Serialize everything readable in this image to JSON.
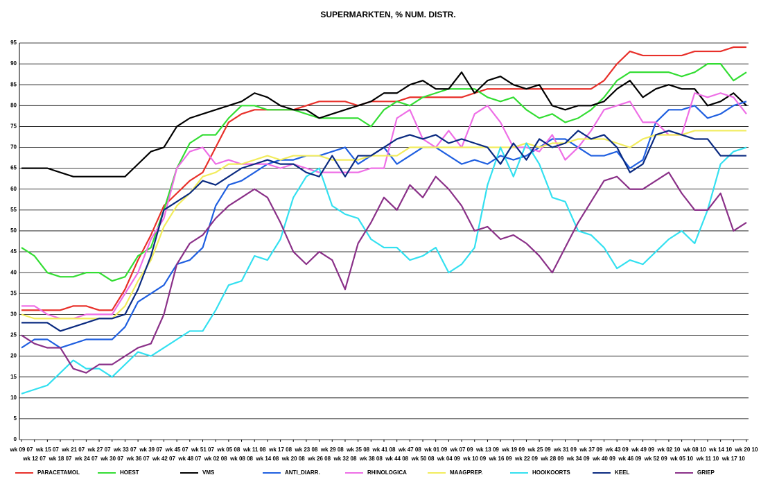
{
  "chart_data": {
    "type": "line",
    "title": "SUPERMARKTEN, % NUM. DISTR.",
    "categories": [
      "wk 09 07",
      "wk 12 07",
      "wk 15 07",
      "wk 18 07",
      "wk 21 07",
      "wk 24 07",
      "wk 27 07",
      "wk 30 07",
      "wk 33 07",
      "wk 36 07",
      "wk 39 07",
      "wk 42 07",
      "wk 45 07",
      "wk 48 07",
      "wk 51 07",
      "wk 02 08",
      "wk 05 08",
      "wk 08 08",
      "wk 11 08",
      "wk 14 08",
      "wk 17 08",
      "wk 20 08",
      "wk 23 08",
      "wk 26 08",
      "wk 29 08",
      "wk 32 08",
      "wk 35 08",
      "wk 38 08",
      "wk 41 08",
      "wk 44 08",
      "wk 47 08",
      "wk 50 08",
      "wk 01 09",
      "wk 04 09",
      "wk 07 09",
      "wk 10 09",
      "wk 13 09",
      "wk 16 09",
      "wk 19 09",
      "wk 22 09",
      "wk 25 09",
      "wk 28 09",
      "wk 31 09",
      "wk 34 09",
      "wk 37 09",
      "wk 40 09",
      "wk 43 09",
      "wk 46 09",
      "wk 49 09",
      "wk 52 09",
      "wk 02 10",
      "wk 05 10",
      "wk 08 10",
      "wk 11 10",
      "wk 14 10",
      "wk 17 10",
      "wk 20 10"
    ],
    "series": [
      {
        "name": "PARACETAMOL",
        "color": "#e8302a",
        "values": [
          31,
          31,
          31,
          31,
          32,
          32,
          31,
          31,
          36,
          43,
          49,
          56,
          59,
          62,
          64,
          70,
          76,
          78,
          79,
          79,
          79,
          79,
          80,
          81,
          81,
          81,
          80,
          81,
          81,
          81,
          82,
          82,
          82,
          82,
          82,
          83,
          84,
          84,
          84,
          84,
          84,
          84,
          84,
          84,
          84,
          86,
          90,
          93,
          92,
          92,
          92,
          92,
          93,
          93,
          93,
          94,
          94
        ]
      },
      {
        "name": "HOEST",
        "color": "#33dd33",
        "values": [
          46,
          44,
          40,
          39,
          39,
          40,
          40,
          38,
          39,
          44,
          46,
          55,
          65,
          71,
          73,
          73,
          77,
          80,
          80,
          79,
          79,
          79,
          78,
          77,
          77,
          77,
          77,
          75,
          79,
          81,
          80,
          82,
          83,
          84,
          84,
          84,
          82,
          81,
          82,
          79,
          77,
          78,
          76,
          77,
          79,
          82,
          86,
          88,
          88,
          88,
          88,
          87,
          88,
          90,
          90,
          86,
          88
        ]
      },
      {
        "name": "VMS",
        "color": "#000000",
        "values": [
          65,
          65,
          65,
          64,
          63,
          63,
          63,
          63,
          63,
          66,
          69,
          70,
          75,
          77,
          78,
          79,
          80,
          81,
          83,
          82,
          80,
          79,
          79,
          77,
          78,
          79,
          80,
          81,
          83,
          83,
          85,
          86,
          84,
          84,
          88,
          83,
          86,
          87,
          85,
          84,
          85,
          80,
          79,
          80,
          80,
          81,
          84,
          86,
          82,
          84,
          85,
          84,
          84,
          80,
          81,
          83,
          80
        ]
      },
      {
        "name": "ANTI_DIARR.",
        "color": "#1f5fe0",
        "values": [
          22,
          24,
          24,
          22,
          23,
          24,
          24,
          24,
          27,
          33,
          35,
          37,
          42,
          43,
          46,
          56,
          61,
          62,
          64,
          66,
          67,
          67,
          68,
          68,
          69,
          70,
          66,
          68,
          70,
          66,
          68,
          70,
          70,
          68,
          66,
          67,
          66,
          68,
          67,
          68,
          70,
          72,
          72,
          70,
          68,
          68,
          69,
          65,
          67,
          76,
          79,
          79,
          80,
          77,
          78,
          80,
          81
        ]
      },
      {
        "name": "RHINOLOGICA",
        "color": "#ee6ee6",
        "values": [
          32,
          32,
          30,
          29,
          29,
          30,
          30,
          30,
          35,
          40,
          48,
          53,
          65,
          69,
          70,
          66,
          67,
          66,
          66,
          66,
          65,
          66,
          65,
          64,
          64,
          64,
          64,
          65,
          65,
          77,
          79,
          72,
          70,
          74,
          70,
          78,
          80,
          76,
          70,
          70,
          69,
          73,
          67,
          70,
          74,
          79,
          80,
          81,
          76,
          76,
          73,
          73,
          83,
          82,
          83,
          82,
          78
        ]
      },
      {
        "name": "MAAGPREP.",
        "color": "#f2ec5c",
        "values": [
          30,
          29,
          29,
          29,
          29,
          29,
          29,
          29,
          32,
          38,
          43,
          51,
          56,
          59,
          63,
          64,
          66,
          66,
          67,
          68,
          67,
          68,
          68,
          68,
          67,
          67,
          67,
          68,
          68,
          68,
          70,
          70,
          70,
          70,
          70,
          70,
          70,
          70,
          70,
          71,
          70,
          71,
          71,
          72,
          72,
          72,
          71,
          70,
          72,
          73,
          73,
          73,
          74,
          74,
          74,
          74,
          74
        ]
      },
      {
        "name": "HOOIKOORTS",
        "color": "#33e0f0",
        "values": [
          11,
          12,
          13,
          16,
          19,
          17,
          17,
          15,
          18,
          21,
          20,
          22,
          24,
          26,
          26,
          31,
          37,
          38,
          44,
          43,
          48,
          58,
          63,
          65,
          56,
          54,
          53,
          48,
          46,
          46,
          43,
          44,
          46,
          40,
          42,
          46,
          61,
          70,
          63,
          71,
          66,
          58,
          57,
          50,
          49,
          46,
          41,
          43,
          42,
          45,
          48,
          50,
          47,
          55,
          66,
          69,
          70
        ]
      },
      {
        "name": "KEEL",
        "color": "#0a2a80",
        "values": [
          28,
          28,
          28,
          26,
          27,
          28,
          29,
          29,
          30,
          36,
          44,
          55,
          57,
          59,
          62,
          61,
          63,
          65,
          66,
          67,
          66,
          66,
          64,
          63,
          68,
          63,
          68,
          68,
          70,
          72,
          73,
          72,
          73,
          71,
          72,
          71,
          70,
          66,
          71,
          67,
          72,
          70,
          71,
          74,
          72,
          73,
          70,
          64,
          66,
          73,
          74,
          73,
          72,
          72,
          68,
          68,
          68
        ]
      },
      {
        "name": "GRIEP",
        "color": "#8a3088",
        "values": [
          25,
          23,
          22,
          22,
          17,
          16,
          18,
          18,
          20,
          22,
          23,
          30,
          42,
          47,
          49,
          53,
          56,
          58,
          60,
          58,
          52,
          45,
          42,
          45,
          43,
          36,
          47,
          52,
          58,
          55,
          61,
          58,
          63,
          60,
          56,
          50,
          51,
          48,
          49,
          47,
          44,
          40,
          46,
          52,
          57,
          62,
          63,
          60,
          60,
          62,
          64,
          59,
          55,
          55,
          59,
          50,
          52
        ]
      }
    ],
    "ylim": [
      0,
      95
    ],
    "yticks": [
      0,
      5,
      10,
      15,
      20,
      25,
      30,
      35,
      40,
      45,
      50,
      55,
      60,
      65,
      70,
      75,
      80,
      85,
      90,
      95
    ],
    "grid": true
  }
}
